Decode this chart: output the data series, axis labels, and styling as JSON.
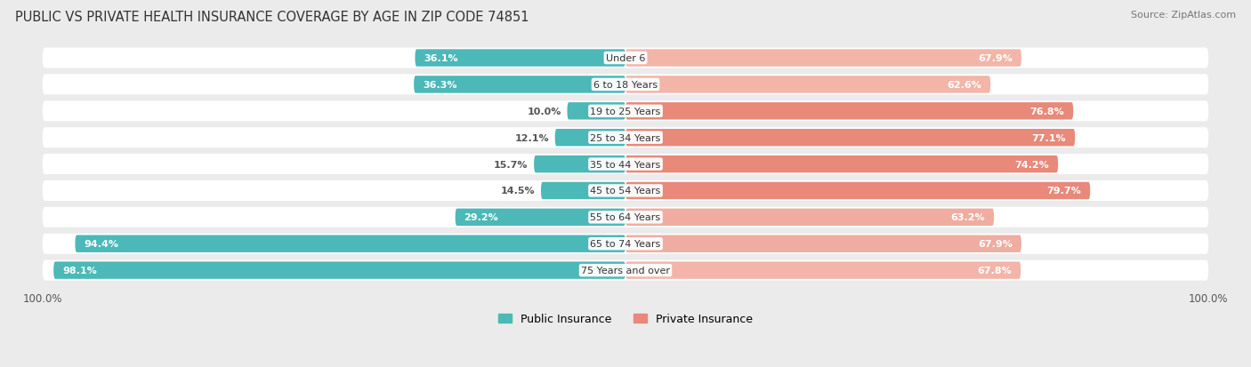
{
  "title": "PUBLIC VS PRIVATE HEALTH INSURANCE COVERAGE BY AGE IN ZIP CODE 74851",
  "source": "Source: ZipAtlas.com",
  "categories": [
    "Under 6",
    "6 to 18 Years",
    "19 to 25 Years",
    "25 to 34 Years",
    "35 to 44 Years",
    "45 to 54 Years",
    "55 to 64 Years",
    "65 to 74 Years",
    "75 Years and over"
  ],
  "public_values": [
    36.1,
    36.3,
    10.0,
    12.1,
    15.7,
    14.5,
    29.2,
    94.4,
    98.1
  ],
  "private_values": [
    67.9,
    62.6,
    76.8,
    77.1,
    74.2,
    79.7,
    63.2,
    67.9,
    67.8
  ],
  "public_color": "#4CB8B8",
  "private_color": "#E8897A",
  "private_color_light": "#F2B5A8",
  "background_color": "#EBEBEB",
  "bar_background": "#FFFFFF",
  "bar_height": 0.65,
  "title_fontsize": 10.5,
  "source_fontsize": 8,
  "label_fontsize": 8,
  "value_fontsize": 8,
  "legend_fontsize": 9,
  "xlim": 105
}
